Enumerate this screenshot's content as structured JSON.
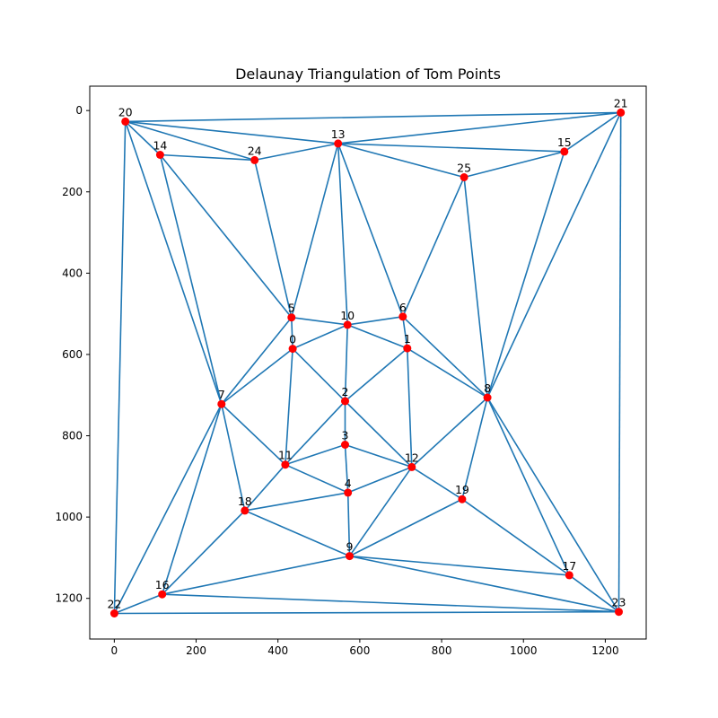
{
  "chart_data": {
    "type": "scatter",
    "title": "Delaunay Triangulation of Tom Points",
    "xlabel": "",
    "ylabel": "",
    "xlim": [
      -60,
      1300
    ],
    "ylim": [
      1300,
      -60
    ],
    "y_inverted": true,
    "x_ticks": [
      0,
      200,
      400,
      600,
      800,
      1000,
      1200
    ],
    "y_ticks": [
      0,
      200,
      400,
      600,
      800,
      1000,
      1200
    ],
    "grid": false,
    "colors": {
      "edges": "#1f77b4",
      "points": "#ff0000"
    },
    "points": [
      {
        "label": "0",
        "x": 436,
        "y": 586
      },
      {
        "label": "1",
        "x": 716,
        "y": 585
      },
      {
        "label": "2",
        "x": 564,
        "y": 715
      },
      {
        "label": "3",
        "x": 564,
        "y": 822
      },
      {
        "label": "4",
        "x": 571,
        "y": 940
      },
      {
        "label": "5",
        "x": 433,
        "y": 509
      },
      {
        "label": "6",
        "x": 705,
        "y": 507
      },
      {
        "label": "7",
        "x": 262,
        "y": 722
      },
      {
        "label": "8",
        "x": 912,
        "y": 706
      },
      {
        "label": "9",
        "x": 575,
        "y": 1096
      },
      {
        "label": "10",
        "x": 570,
        "y": 527
      },
      {
        "label": "11",
        "x": 418,
        "y": 871
      },
      {
        "label": "12",
        "x": 727,
        "y": 877
      },
      {
        "label": "13",
        "x": 547,
        "y": 81
      },
      {
        "label": "14",
        "x": 112,
        "y": 109
      },
      {
        "label": "15",
        "x": 1100,
        "y": 101
      },
      {
        "label": "16",
        "x": 117,
        "y": 1190
      },
      {
        "label": "17",
        "x": 1112,
        "y": 1143
      },
      {
        "label": "18",
        "x": 319,
        "y": 984
      },
      {
        "label": "19",
        "x": 850,
        "y": 956
      },
      {
        "label": "20",
        "x": 27,
        "y": 27
      },
      {
        "label": "21",
        "x": 1238,
        "y": 5
      },
      {
        "label": "22",
        "x": 0,
        "y": 1237
      },
      {
        "label": "23",
        "x": 1233,
        "y": 1233
      },
      {
        "label": "24",
        "x": 343,
        "y": 122
      },
      {
        "label": "25",
        "x": 855,
        "y": 164
      }
    ],
    "edges": [
      [
        20,
        21
      ],
      [
        20,
        13
      ],
      [
        20,
        14
      ],
      [
        20,
        24
      ],
      [
        20,
        22
      ],
      [
        20,
        7
      ],
      [
        21,
        13
      ],
      [
        21,
        15
      ],
      [
        21,
        8
      ],
      [
        21,
        23
      ],
      [
        13,
        24
      ],
      [
        13,
        15
      ],
      [
        13,
        25
      ],
      [
        13,
        5
      ],
      [
        13,
        10
      ],
      [
        13,
        6
      ],
      [
        15,
        25
      ],
      [
        15,
        8
      ],
      [
        14,
        24
      ],
      [
        14,
        5
      ],
      [
        14,
        7
      ],
      [
        24,
        5
      ],
      [
        25,
        6
      ],
      [
        25,
        8
      ],
      [
        5,
        10
      ],
      [
        5,
        0
      ],
      [
        5,
        7
      ],
      [
        10,
        0
      ],
      [
        10,
        6
      ],
      [
        10,
        1
      ],
      [
        10,
        2
      ],
      [
        6,
        1
      ],
      [
        6,
        8
      ],
      [
        1,
        8
      ],
      [
        1,
        2
      ],
      [
        1,
        12
      ],
      [
        0,
        7
      ],
      [
        0,
        2
      ],
      [
        0,
        11
      ],
      [
        7,
        11
      ],
      [
        7,
        18
      ],
      [
        7,
        16
      ],
      [
        7,
        22
      ],
      [
        2,
        11
      ],
      [
        2,
        3
      ],
      [
        2,
        12
      ],
      [
        3,
        11
      ],
      [
        3,
        4
      ],
      [
        3,
        12
      ],
      [
        11,
        4
      ],
      [
        11,
        18
      ],
      [
        12,
        4
      ],
      [
        12,
        8
      ],
      [
        12,
        19
      ],
      [
        12,
        9
      ],
      [
        4,
        18
      ],
      [
        4,
        9
      ],
      [
        8,
        19
      ],
      [
        8,
        17
      ],
      [
        8,
        23
      ],
      [
        19,
        9
      ],
      [
        19,
        17
      ],
      [
        18,
        9
      ],
      [
        18,
        16
      ],
      [
        9,
        16
      ],
      [
        9,
        17
      ],
      [
        9,
        23
      ],
      [
        16,
        22
      ],
      [
        16,
        23
      ],
      [
        17,
        23
      ],
      [
        22,
        23
      ]
    ]
  }
}
